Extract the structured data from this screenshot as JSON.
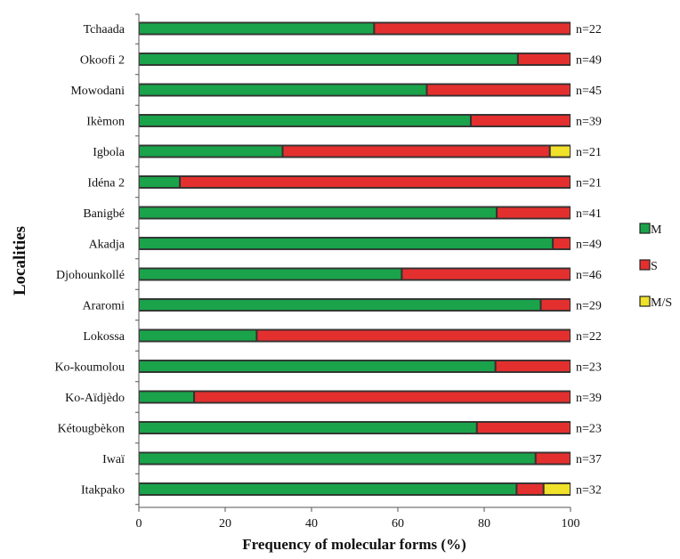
{
  "chart_data": {
    "type": "bar",
    "orientation": "horizontal",
    "stacked": true,
    "xlabel": "Frequency of molecular  forms (%)",
    "ylabel": "Localities",
    "xlim": [
      0,
      100
    ],
    "xticks": [
      0,
      20,
      40,
      60,
      80,
      100
    ],
    "grid": false,
    "legend_position": "right",
    "categories": [
      "Tchaada",
      "Okoofi 2",
      "Mowodani",
      "Ikèmon",
      "Igbola",
      "Idéna 2",
      "Banigbé",
      "Akadja",
      "Djohounkollé",
      "Araromi",
      "Lokossa",
      "Ko-koumolou",
      "Ko-Aïdjèdo",
      "Kétougbèkon",
      "Iwaï",
      "Itakpako"
    ],
    "series": [
      {
        "name": "M",
        "color": "#1aa34a",
        "values": [
          54.5,
          87.8,
          66.7,
          76.9,
          33.3,
          9.5,
          82.9,
          95.9,
          60.9,
          93.1,
          27.3,
          82.6,
          12.8,
          78.3,
          91.9,
          87.5
        ]
      },
      {
        "name": "S",
        "color": "#e3302f",
        "values": [
          45.5,
          12.2,
          33.3,
          23.1,
          61.9,
          90.5,
          17.1,
          4.1,
          39.1,
          6.9,
          72.7,
          17.4,
          87.2,
          21.7,
          8.1,
          6.25
        ]
      },
      {
        "name": "M/S",
        "color": "#f0e12a",
        "values": [
          0,
          0,
          0,
          0,
          4.8,
          0,
          0,
          0,
          0,
          0,
          0,
          0,
          0,
          0,
          0,
          6.25
        ]
      }
    ],
    "sample_sizes": [
      "n=22",
      "n=49",
      "n=45",
      "n=39",
      "n=21",
      "n=21",
      "n=41",
      "n=49",
      "n=46",
      "n=29",
      "n=22",
      "n=23",
      "n=39",
      "n=23",
      "n=37",
      "n=32"
    ]
  }
}
